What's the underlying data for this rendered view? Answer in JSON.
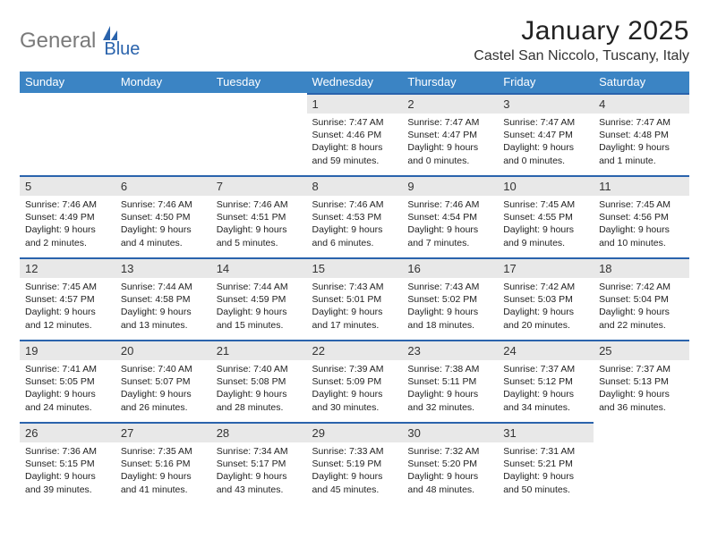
{
  "logo": {
    "part1": "General",
    "part2": "Blue"
  },
  "title": "January 2025",
  "location": "Castel San Niccolo, Tuscany, Italy",
  "colors": {
    "header_bg": "#3b84c4",
    "header_text": "#ffffff",
    "daynum_bg": "#e8e8e8",
    "row_border": "#2a63ac",
    "logo_gray": "#7a7a7a",
    "logo_blue": "#2a63ac"
  },
  "weekdays": [
    "Sunday",
    "Monday",
    "Tuesday",
    "Wednesday",
    "Thursday",
    "Friday",
    "Saturday"
  ],
  "weeks": [
    [
      {
        "day": "",
        "lines": []
      },
      {
        "day": "",
        "lines": []
      },
      {
        "day": "",
        "lines": []
      },
      {
        "day": "1",
        "lines": [
          "Sunrise: 7:47 AM",
          "Sunset: 4:46 PM",
          "Daylight: 8 hours",
          "and 59 minutes."
        ]
      },
      {
        "day": "2",
        "lines": [
          "Sunrise: 7:47 AM",
          "Sunset: 4:47 PM",
          "Daylight: 9 hours",
          "and 0 minutes."
        ]
      },
      {
        "day": "3",
        "lines": [
          "Sunrise: 7:47 AM",
          "Sunset: 4:47 PM",
          "Daylight: 9 hours",
          "and 0 minutes."
        ]
      },
      {
        "day": "4",
        "lines": [
          "Sunrise: 7:47 AM",
          "Sunset: 4:48 PM",
          "Daylight: 9 hours",
          "and 1 minute."
        ]
      }
    ],
    [
      {
        "day": "5",
        "lines": [
          "Sunrise: 7:46 AM",
          "Sunset: 4:49 PM",
          "Daylight: 9 hours",
          "and 2 minutes."
        ]
      },
      {
        "day": "6",
        "lines": [
          "Sunrise: 7:46 AM",
          "Sunset: 4:50 PM",
          "Daylight: 9 hours",
          "and 4 minutes."
        ]
      },
      {
        "day": "7",
        "lines": [
          "Sunrise: 7:46 AM",
          "Sunset: 4:51 PM",
          "Daylight: 9 hours",
          "and 5 minutes."
        ]
      },
      {
        "day": "8",
        "lines": [
          "Sunrise: 7:46 AM",
          "Sunset: 4:53 PM",
          "Daylight: 9 hours",
          "and 6 minutes."
        ]
      },
      {
        "day": "9",
        "lines": [
          "Sunrise: 7:46 AM",
          "Sunset: 4:54 PM",
          "Daylight: 9 hours",
          "and 7 minutes."
        ]
      },
      {
        "day": "10",
        "lines": [
          "Sunrise: 7:45 AM",
          "Sunset: 4:55 PM",
          "Daylight: 9 hours",
          "and 9 minutes."
        ]
      },
      {
        "day": "11",
        "lines": [
          "Sunrise: 7:45 AM",
          "Sunset: 4:56 PM",
          "Daylight: 9 hours",
          "and 10 minutes."
        ]
      }
    ],
    [
      {
        "day": "12",
        "lines": [
          "Sunrise: 7:45 AM",
          "Sunset: 4:57 PM",
          "Daylight: 9 hours",
          "and 12 minutes."
        ]
      },
      {
        "day": "13",
        "lines": [
          "Sunrise: 7:44 AM",
          "Sunset: 4:58 PM",
          "Daylight: 9 hours",
          "and 13 minutes."
        ]
      },
      {
        "day": "14",
        "lines": [
          "Sunrise: 7:44 AM",
          "Sunset: 4:59 PM",
          "Daylight: 9 hours",
          "and 15 minutes."
        ]
      },
      {
        "day": "15",
        "lines": [
          "Sunrise: 7:43 AM",
          "Sunset: 5:01 PM",
          "Daylight: 9 hours",
          "and 17 minutes."
        ]
      },
      {
        "day": "16",
        "lines": [
          "Sunrise: 7:43 AM",
          "Sunset: 5:02 PM",
          "Daylight: 9 hours",
          "and 18 minutes."
        ]
      },
      {
        "day": "17",
        "lines": [
          "Sunrise: 7:42 AM",
          "Sunset: 5:03 PM",
          "Daylight: 9 hours",
          "and 20 minutes."
        ]
      },
      {
        "day": "18",
        "lines": [
          "Sunrise: 7:42 AM",
          "Sunset: 5:04 PM",
          "Daylight: 9 hours",
          "and 22 minutes."
        ]
      }
    ],
    [
      {
        "day": "19",
        "lines": [
          "Sunrise: 7:41 AM",
          "Sunset: 5:05 PM",
          "Daylight: 9 hours",
          "and 24 minutes."
        ]
      },
      {
        "day": "20",
        "lines": [
          "Sunrise: 7:40 AM",
          "Sunset: 5:07 PM",
          "Daylight: 9 hours",
          "and 26 minutes."
        ]
      },
      {
        "day": "21",
        "lines": [
          "Sunrise: 7:40 AM",
          "Sunset: 5:08 PM",
          "Daylight: 9 hours",
          "and 28 minutes."
        ]
      },
      {
        "day": "22",
        "lines": [
          "Sunrise: 7:39 AM",
          "Sunset: 5:09 PM",
          "Daylight: 9 hours",
          "and 30 minutes."
        ]
      },
      {
        "day": "23",
        "lines": [
          "Sunrise: 7:38 AM",
          "Sunset: 5:11 PM",
          "Daylight: 9 hours",
          "and 32 minutes."
        ]
      },
      {
        "day": "24",
        "lines": [
          "Sunrise: 7:37 AM",
          "Sunset: 5:12 PM",
          "Daylight: 9 hours",
          "and 34 minutes."
        ]
      },
      {
        "day": "25",
        "lines": [
          "Sunrise: 7:37 AM",
          "Sunset: 5:13 PM",
          "Daylight: 9 hours",
          "and 36 minutes."
        ]
      }
    ],
    [
      {
        "day": "26",
        "lines": [
          "Sunrise: 7:36 AM",
          "Sunset: 5:15 PM",
          "Daylight: 9 hours",
          "and 39 minutes."
        ]
      },
      {
        "day": "27",
        "lines": [
          "Sunrise: 7:35 AM",
          "Sunset: 5:16 PM",
          "Daylight: 9 hours",
          "and 41 minutes."
        ]
      },
      {
        "day": "28",
        "lines": [
          "Sunrise: 7:34 AM",
          "Sunset: 5:17 PM",
          "Daylight: 9 hours",
          "and 43 minutes."
        ]
      },
      {
        "day": "29",
        "lines": [
          "Sunrise: 7:33 AM",
          "Sunset: 5:19 PM",
          "Daylight: 9 hours",
          "and 45 minutes."
        ]
      },
      {
        "day": "30",
        "lines": [
          "Sunrise: 7:32 AM",
          "Sunset: 5:20 PM",
          "Daylight: 9 hours",
          "and 48 minutes."
        ]
      },
      {
        "day": "31",
        "lines": [
          "Sunrise: 7:31 AM",
          "Sunset: 5:21 PM",
          "Daylight: 9 hours",
          "and 50 minutes."
        ]
      },
      {
        "day": "",
        "lines": []
      }
    ]
  ]
}
